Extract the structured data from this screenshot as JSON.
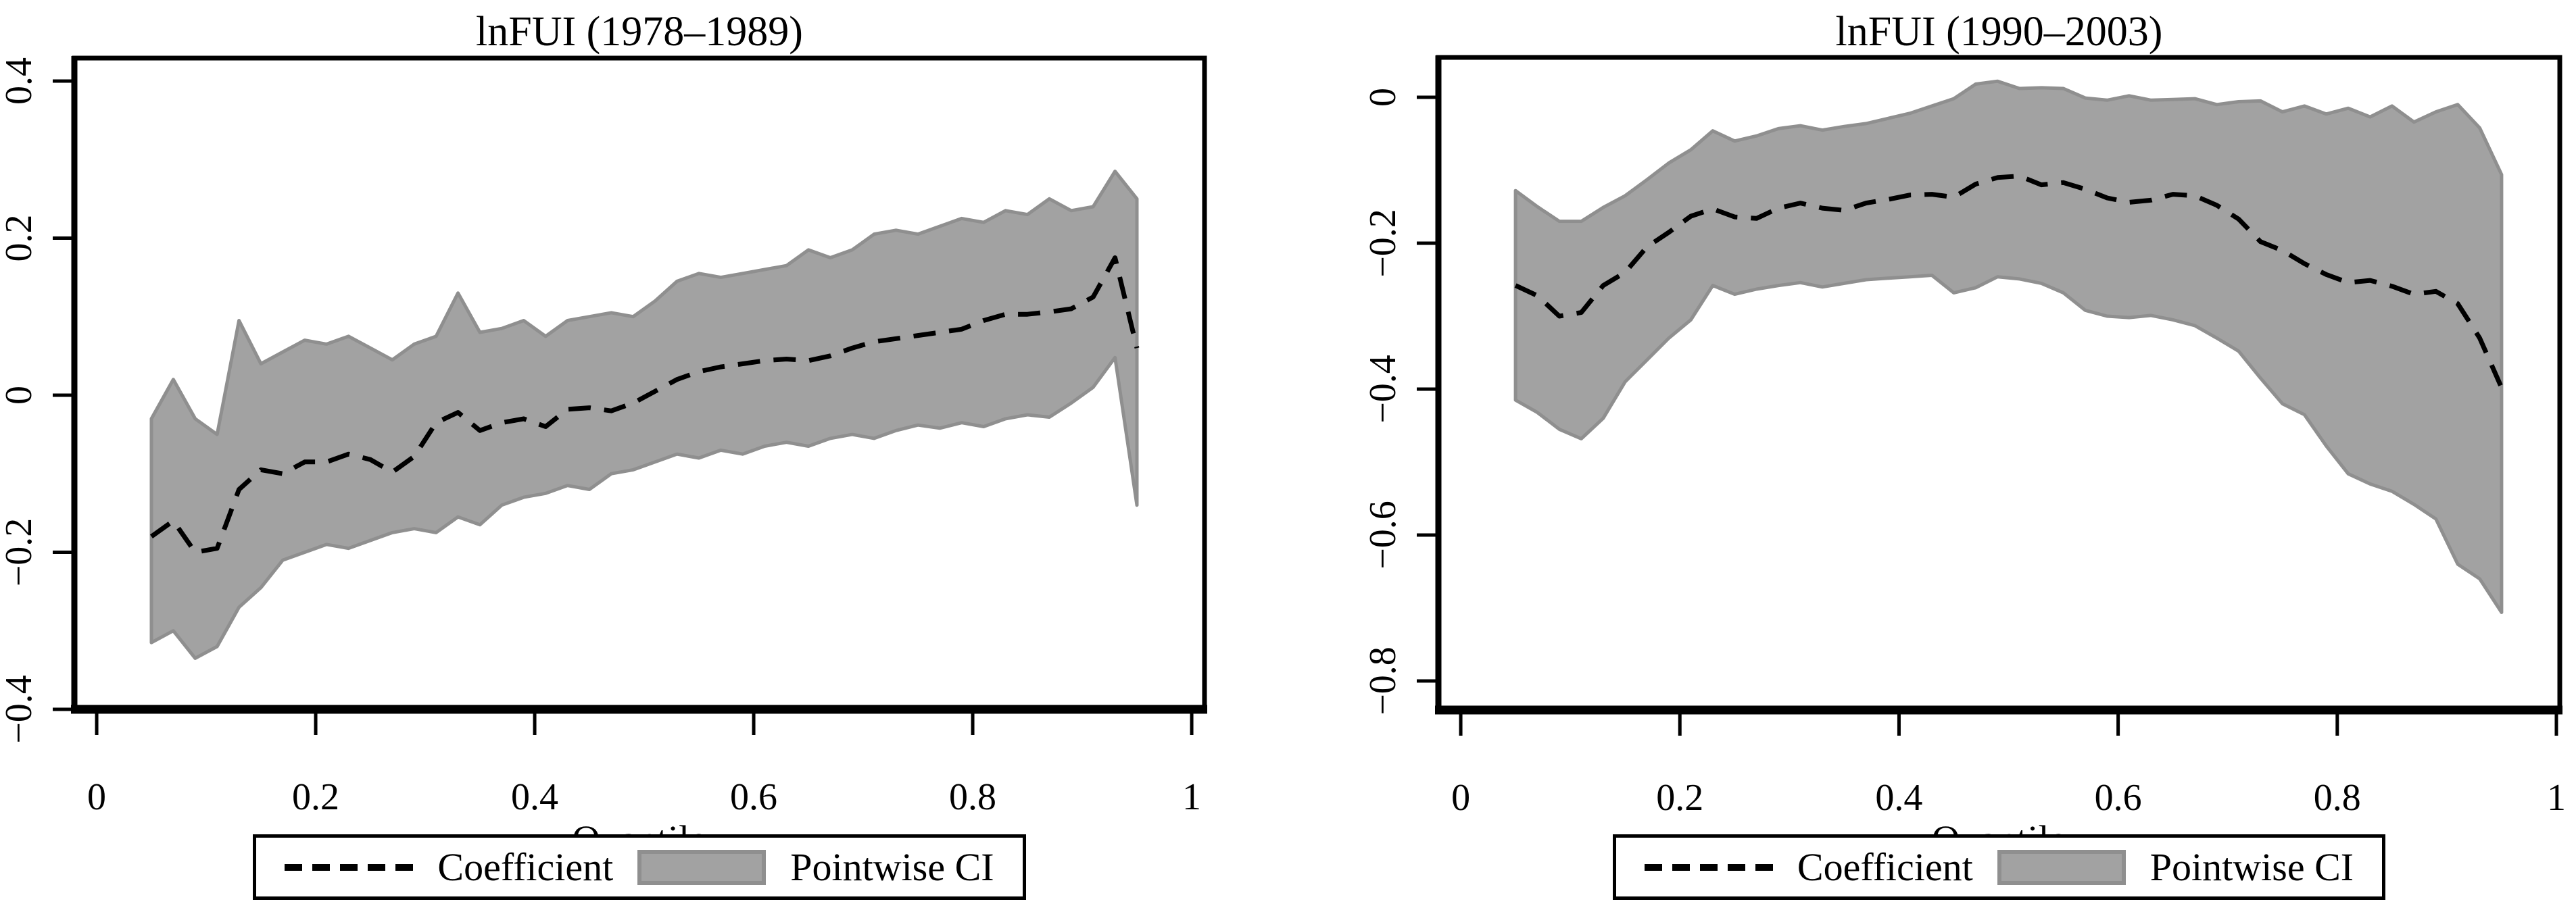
{
  "figure": {
    "background": "#ffffff"
  },
  "colors": {
    "band_fill": "#a2a2a2",
    "band_stroke": "#8f8f8f",
    "coefficient_line": "#000000",
    "frame": "#000000",
    "text": "#000000"
  },
  "legend": {
    "coefficient_label": "Coefficient",
    "ci_label": "Pointwise CI"
  },
  "chart_data": [
    {
      "type": "line",
      "title": "lnFUI (1978–1989)",
      "xlabel": "Quantile",
      "ylabel": "",
      "grid": false,
      "legend_position": "bottom",
      "xlim": [
        -0.0204,
        1.0117
      ],
      "ylim": [
        -0.4,
        0.4292
      ],
      "x_ticks": {
        "values": [
          0,
          0.2,
          0.4,
          0.6,
          0.8,
          1
        ],
        "labels": [
          "0",
          "0.2",
          "0.4",
          "0.6",
          "0.8",
          "1"
        ]
      },
      "y_ticks": {
        "values": [
          0.4,
          0.2,
          0,
          -0.2,
          -0.4
        ],
        "labels": [
          "0.4",
          "0.2",
          "0",
          "−0.2",
          "−0.4"
        ]
      },
      "x": [
        0.05,
        0.07,
        0.09,
        0.11,
        0.13,
        0.15,
        0.17,
        0.19,
        0.21,
        0.23,
        0.25,
        0.27,
        0.29,
        0.31,
        0.33,
        0.35,
        0.37,
        0.39,
        0.41,
        0.43,
        0.45,
        0.47,
        0.49,
        0.51,
        0.53,
        0.55,
        0.57,
        0.59,
        0.61,
        0.63,
        0.65,
        0.67,
        0.69,
        0.71,
        0.73,
        0.75,
        0.77,
        0.79,
        0.81,
        0.83,
        0.85,
        0.87,
        0.89,
        0.91,
        0.93,
        0.95
      ],
      "series": [
        {
          "name": "Coefficient",
          "style": "dashed",
          "values": [
            -0.18,
            -0.16,
            -0.2,
            -0.195,
            -0.12,
            -0.095,
            -0.1,
            -0.085,
            -0.085,
            -0.075,
            -0.082,
            -0.098,
            -0.078,
            -0.035,
            -0.022,
            -0.045,
            -0.035,
            -0.03,
            -0.04,
            -0.018,
            -0.016,
            -0.02,
            -0.01,
            0.005,
            0.02,
            0.03,
            0.036,
            0.04,
            0.044,
            0.046,
            0.044,
            0.05,
            0.06,
            0.068,
            0.072,
            0.076,
            0.08,
            0.084,
            0.095,
            0.103,
            0.103,
            0.106,
            0.11,
            0.125,
            0.175,
            0.06
          ]
        },
        {
          "name": "Pointwise CI",
          "style": "band",
          "upper": [
            -0.03,
            0.02,
            -0.03,
            -0.05,
            0.095,
            0.04,
            0.055,
            0.07,
            0.065,
            0.075,
            0.06,
            0.045,
            0.065,
            0.075,
            0.13,
            0.08,
            0.085,
            0.095,
            0.075,
            0.095,
            0.1,
            0.105,
            0.1,
            0.12,
            0.145,
            0.155,
            0.15,
            0.155,
            0.16,
            0.165,
            0.185,
            0.175,
            0.185,
            0.205,
            0.21,
            0.205,
            0.215,
            0.225,
            0.22,
            0.235,
            0.23,
            0.25,
            0.235,
            0.24,
            0.285,
            0.25
          ],
          "lower": [
            -0.315,
            -0.3,
            -0.335,
            -0.32,
            -0.27,
            -0.245,
            -0.21,
            -0.2,
            -0.19,
            -0.195,
            -0.185,
            -0.175,
            -0.17,
            -0.175,
            -0.155,
            -0.165,
            -0.14,
            -0.13,
            -0.125,
            -0.115,
            -0.12,
            -0.1,
            -0.095,
            -0.085,
            -0.075,
            -0.08,
            -0.07,
            -0.075,
            -0.065,
            -0.06,
            -0.065,
            -0.055,
            -0.05,
            -0.055,
            -0.045,
            -0.038,
            -0.042,
            -0.035,
            -0.04,
            -0.03,
            -0.025,
            -0.028,
            -0.01,
            0.01,
            0.048,
            -0.14
          ]
        }
      ]
    },
    {
      "type": "line",
      "title": "lnFUI (1990–2003)",
      "xlabel": "Quantile",
      "ylabel": "",
      "grid": false,
      "legend_position": "bottom",
      "xlim": [
        -0.0204,
        1.0031
      ],
      "ylim": [
        -0.8398,
        0.0546
      ],
      "x_ticks": {
        "values": [
          0,
          0.2,
          0.4,
          0.6,
          0.8,
          1
        ],
        "labels": [
          "0",
          "0.2",
          "0.4",
          "0.6",
          "0.8",
          "1"
        ]
      },
      "y_ticks": {
        "values": [
          0,
          -0.2,
          -0.4,
          -0.6,
          -0.8
        ],
        "labels": [
          "0",
          "−0.2",
          "−0.4",
          "−0.6",
          "−0.8"
        ]
      },
      "x": [
        0.05,
        0.07,
        0.09,
        0.11,
        0.13,
        0.15,
        0.17,
        0.19,
        0.21,
        0.23,
        0.25,
        0.27,
        0.29,
        0.31,
        0.33,
        0.35,
        0.37,
        0.39,
        0.41,
        0.43,
        0.45,
        0.47,
        0.49,
        0.51,
        0.53,
        0.55,
        0.57,
        0.59,
        0.61,
        0.63,
        0.65,
        0.67,
        0.69,
        0.71,
        0.73,
        0.75,
        0.77,
        0.79,
        0.81,
        0.83,
        0.85,
        0.87,
        0.89,
        0.91,
        0.93,
        0.95
      ],
      "series": [
        {
          "name": "Coefficient",
          "style": "dashed",
          "values": [
            -0.258,
            -0.272,
            -0.3,
            -0.295,
            -0.258,
            -0.24,
            -0.205,
            -0.185,
            -0.163,
            -0.153,
            -0.164,
            -0.166,
            -0.152,
            -0.145,
            -0.152,
            -0.155,
            -0.145,
            -0.14,
            -0.134,
            -0.133,
            -0.137,
            -0.119,
            -0.11,
            -0.108,
            -0.12,
            -0.117,
            -0.126,
            -0.138,
            -0.144,
            -0.141,
            -0.133,
            -0.135,
            -0.148,
            -0.167,
            -0.198,
            -0.21,
            -0.228,
            -0.243,
            -0.254,
            -0.251,
            -0.259,
            -0.27,
            -0.266,
            -0.283,
            -0.33,
            -0.398
          ]
        },
        {
          "name": "Pointwise CI",
          "style": "band",
          "upper": [
            -0.128,
            -0.15,
            -0.17,
            -0.17,
            -0.151,
            -0.135,
            -0.113,
            -0.09,
            -0.072,
            -0.046,
            -0.06,
            -0.053,
            -0.043,
            -0.039,
            -0.045,
            -0.04,
            -0.036,
            -0.029,
            -0.022,
            -0.012,
            -0.002,
            0.018,
            0.022,
            0.012,
            0.013,
            0.012,
            -0.001,
            -0.004,
            0.002,
            -0.004,
            -0.003,
            -0.002,
            -0.01,
            -0.006,
            -0.005,
            -0.02,
            -0.012,
            -0.023,
            -0.015,
            -0.027,
            -0.012,
            -0.034,
            -0.02,
            -0.01,
            -0.042,
            -0.106
          ],
          "lower": [
            -0.415,
            -0.432,
            -0.455,
            -0.468,
            -0.44,
            -0.39,
            -0.36,
            -0.33,
            -0.305,
            -0.258,
            -0.27,
            -0.263,
            -0.258,
            -0.254,
            -0.26,
            -0.255,
            -0.25,
            -0.248,
            -0.246,
            -0.244,
            -0.268,
            -0.261,
            -0.246,
            -0.249,
            -0.255,
            -0.268,
            -0.292,
            -0.3,
            -0.302,
            -0.299,
            -0.305,
            -0.313,
            -0.33,
            -0.348,
            -0.385,
            -0.42,
            -0.435,
            -0.478,
            -0.516,
            -0.53,
            -0.54,
            -0.558,
            -0.578,
            -0.64,
            -0.66,
            -0.706
          ]
        }
      ]
    }
  ]
}
